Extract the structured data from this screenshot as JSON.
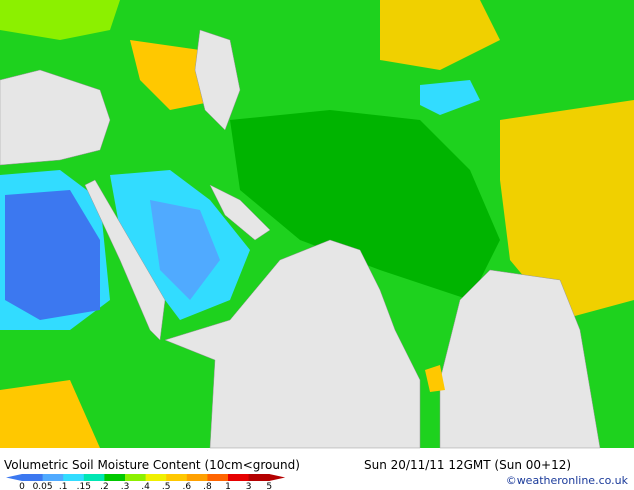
{
  "title": "Volumetric Soil Moisture Content (10cm<ground)",
  "valid_time": "Sun 20/11/11 12GMT (Sun 00+12)",
  "credit": "©weatheronline.co.uk",
  "legend": {
    "labels": [
      "0",
      "0.05",
      ".1",
      ".15",
      ".2",
      ".3",
      ".4",
      ".5",
      ".6",
      ".8",
      "1",
      "3",
      "5"
    ],
    "colors": [
      "#3c78f0",
      "#50aaff",
      "#32dcff",
      "#00e6b4",
      "#00c800",
      "#8cf000",
      "#f0f000",
      "#ffc800",
      "#ffa000",
      "#ff6400",
      "#e60000",
      "#b40000"
    ]
  }
}
